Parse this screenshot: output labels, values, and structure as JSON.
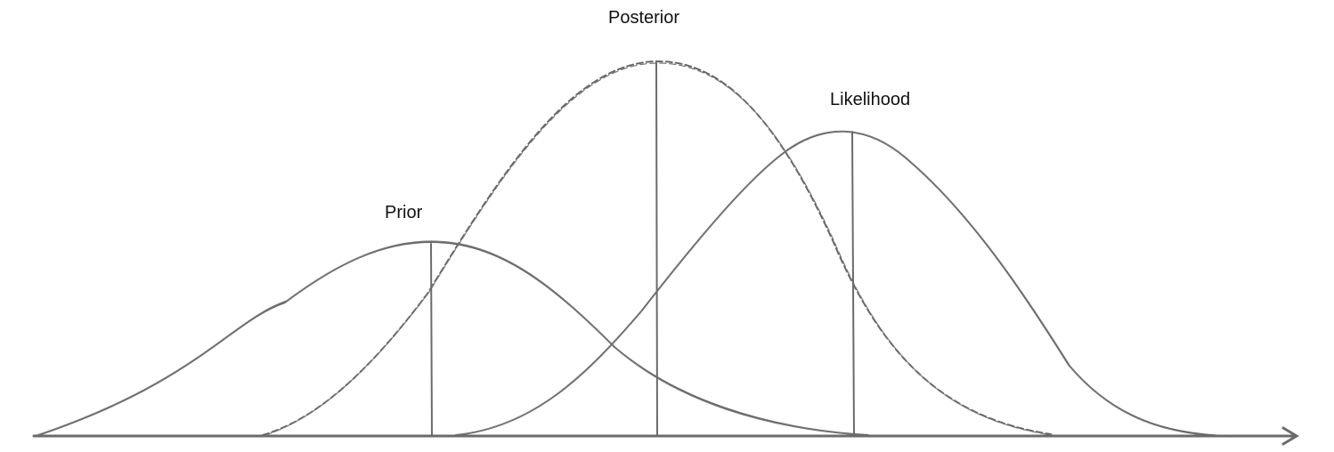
{
  "diagram": {
    "labels": {
      "prior": "Prior",
      "posterior": "Posterior",
      "likelihood": "Likelihood"
    },
    "distributions": [
      {
        "key": "prior",
        "shape": "bell-curve",
        "style": "solid",
        "relative_peak": 0.63,
        "relative_mean": 0.315
      },
      {
        "key": "posterior",
        "shape": "bell-curve",
        "style": "dashed",
        "relative_peak": 1.0,
        "relative_mean": 0.495
      },
      {
        "key": "likelihood",
        "shape": "bell-curve",
        "style": "solid",
        "relative_peak": 0.83,
        "relative_mean": 0.652
      }
    ],
    "colors": {
      "stroke": "#666666",
      "text": "#111111",
      "background": "#ffffff"
    },
    "axis": {
      "has_arrow": true,
      "ticks": false
    }
  }
}
